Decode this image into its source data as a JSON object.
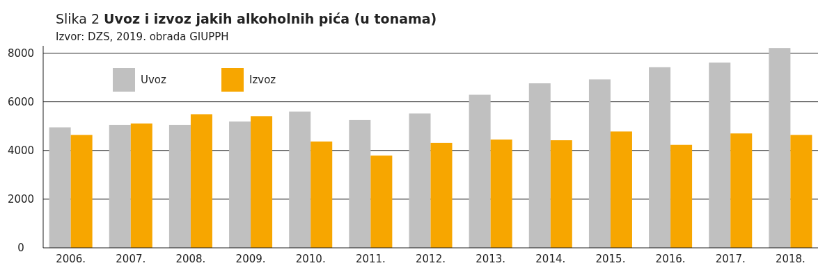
{
  "chart_data": {
    "type": "bar",
    "title": "Slika 2 Uvoz i izvoz jakih alkoholnih pića (u tonama)",
    "subtitle": "Izvor: DZS, 2019. obrada GIUPPH",
    "categories": [
      "2006.",
      "2007.",
      "2008.",
      "2009.",
      "2010.",
      "2011.",
      "2012.",
      "2013.",
      "2014.",
      "2015.",
      "2016.",
      "2017.",
      "2018."
    ],
    "series": [
      {
        "name": "Uvoz",
        "color": "#c0c0c0",
        "values": [
          4950,
          5050,
          5050,
          5190,
          5600,
          5250,
          5520,
          6290,
          6760,
          6920,
          7420,
          7610,
          8210
        ]
      },
      {
        "name": "Izvoz",
        "color": "#f7a600",
        "values": [
          4640,
          5110,
          5490,
          5410,
          4370,
          3790,
          4310,
          4450,
          4420,
          4780,
          4230,
          4700,
          4640
        ]
      }
    ],
    "ylim": [
      0,
      8300
    ],
    "yticks": [
      0,
      2000,
      4000,
      6000,
      8000
    ],
    "grid": "y",
    "legend": "top left"
  }
}
